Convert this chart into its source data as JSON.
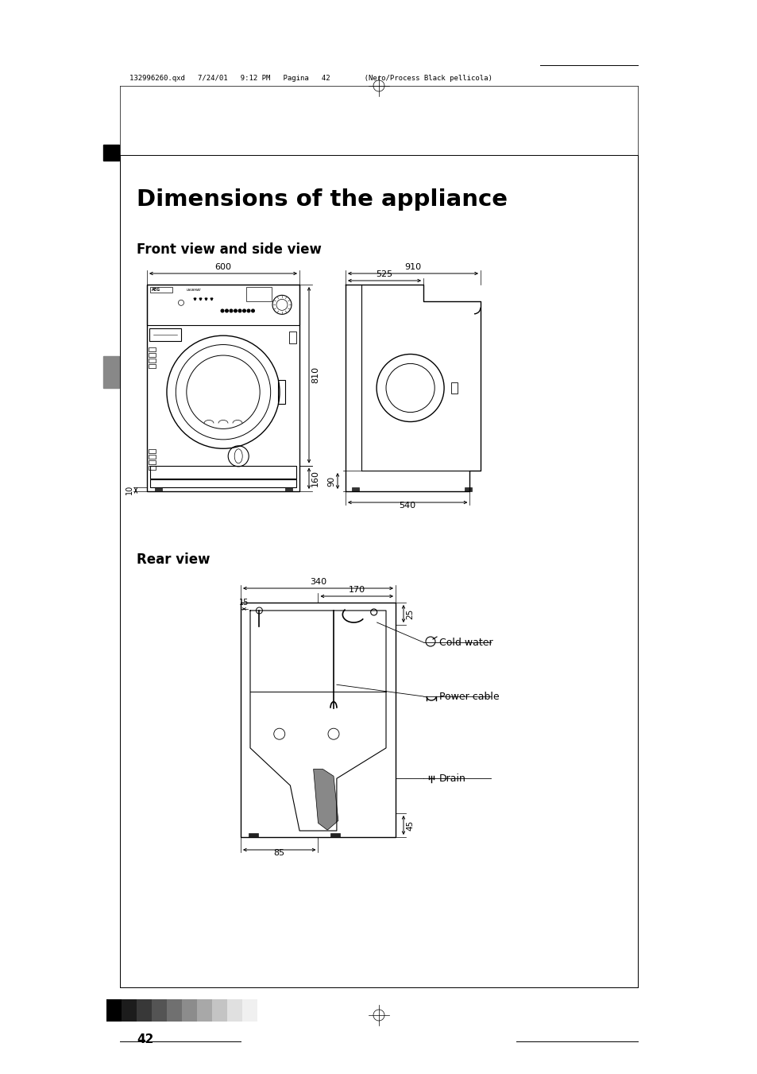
{
  "title": "Dimensions of the appliance",
  "subtitle1": "Front view and side view",
  "subtitle2": "Rear view",
  "bg_color": "#ffffff",
  "line_color": "#000000",
  "header_text": "132996260.qxd   7/24/01   9:12 PM   Pagina   42        (Nero/Process Black pellicola)",
  "page_number": "42",
  "colors_bar": [
    "#000000",
    "#1c1c1c",
    "#383838",
    "#545454",
    "#707070",
    "#8c8c8c",
    "#a8a8a8",
    "#c4c4c4",
    "#e0e0e0",
    "#f0f0f0"
  ]
}
